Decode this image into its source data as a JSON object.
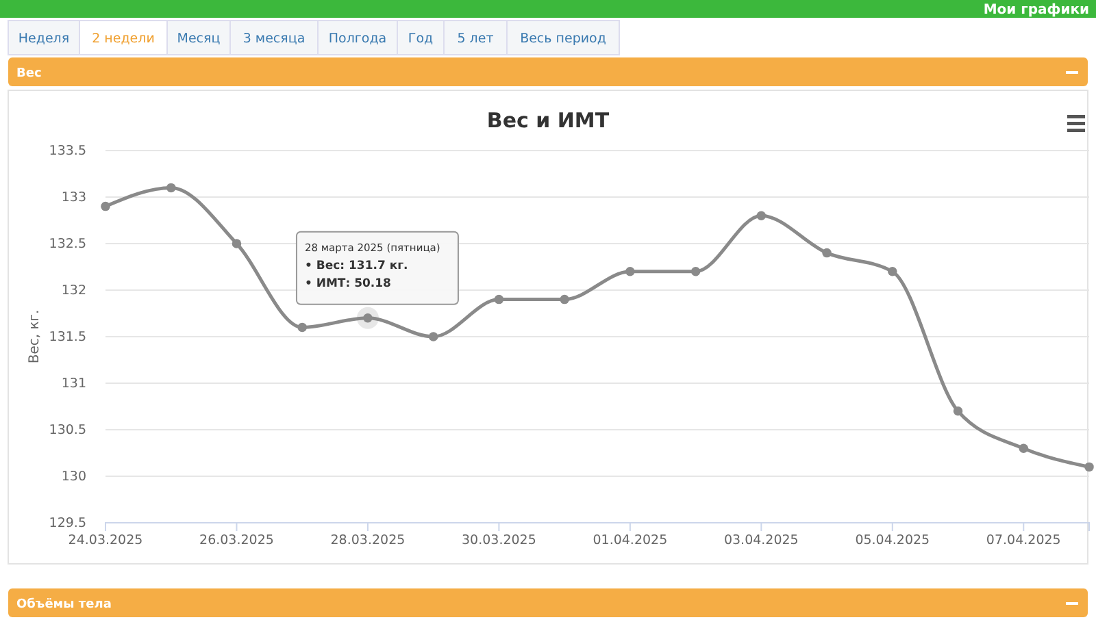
{
  "chart_data": {
    "type": "line",
    "title": "Вес и ИМТ",
    "ylabel": "Вес, кг.",
    "x": [
      "2025-03-24",
      "2025-03-25",
      "2025-03-26",
      "2025-03-27",
      "2025-03-28",
      "2025-03-29",
      "2025-03-30",
      "2025-03-31",
      "2025-04-01",
      "2025-04-02",
      "2025-04-03",
      "2025-04-04",
      "2025-04-05",
      "2025-04-06",
      "2025-04-07",
      "2025-04-08"
    ],
    "series": [
      {
        "color": "#8a8a8a",
        "values": [
          132.9,
          133.1,
          132.5,
          131.6,
          131.7,
          131.5,
          131.9,
          131.9,
          132.2,
          132.2,
          132.8,
          132.4,
          132.2,
          130.7,
          130.3,
          130.1
        ]
      }
    ],
    "xlim": [
      "2025-03-24",
      "2025-04-08"
    ],
    "xticks": [
      {
        "value": "2025-03-24",
        "label": "24.03.2025"
      },
      {
        "value": "2025-03-26",
        "label": "26.03.2025"
      },
      {
        "value": "2025-03-28",
        "label": "28.03.2025"
      },
      {
        "value": "2025-03-30",
        "label": "30.03.2025"
      },
      {
        "value": "2025-04-01",
        "label": "01.04.2025"
      },
      {
        "value": "2025-04-03",
        "label": "03.04.2025"
      },
      {
        "value": "2025-04-05",
        "label": "05.04.2025"
      },
      {
        "value": "2025-04-07",
        "label": "07.04.2025"
      }
    ],
    "ylim": [
      129.5,
      133.5
    ],
    "yticks": [
      129.5,
      130,
      130.5,
      131,
      131.5,
      132,
      132.5,
      133,
      133.5
    ],
    "grid": "y",
    "marker": "circle",
    "line_style": "solid",
    "annotations": [
      "Мои графики",
      "Неделя",
      "2 недели",
      "Месяц",
      "3 месяца",
      "Полгода",
      "Год",
      "5 лет",
      "Весь период",
      "Вес",
      "Объёмы тела",
      {
        "text": "28 марта 2025 (пятница)\n• Вес: 131.7 кг.\n• ИМТ: 50.18",
        "x": "2025-03-28",
        "y": 131.7
      }
    ]
  }
}
